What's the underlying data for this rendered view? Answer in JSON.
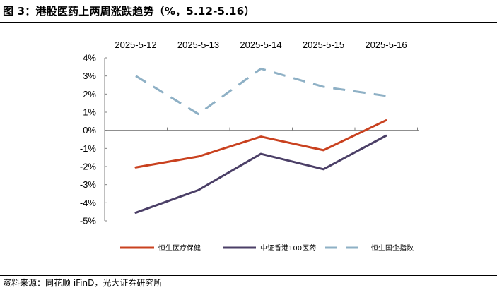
{
  "title": "图 3：港股医药上两周涨跌趋势（%，5.12-5.16）",
  "source": "资料来源：同花顺 iFinD，光大证券研究所",
  "chart_data": {
    "type": "line",
    "categories": [
      "2025-5-12",
      "2025-5-13",
      "2025-5-14",
      "2025-5-15",
      "2025-5-16"
    ],
    "yunit": "%",
    "ylim": [
      -5,
      4
    ],
    "yticks": [
      4,
      3,
      2,
      1,
      0,
      -1,
      -2,
      -3,
      -4,
      -5
    ],
    "grid": false,
    "legend_position": "bottom",
    "series": [
      {
        "name": "恒生医疗保健",
        "values": [
          -2.05,
          -1.45,
          -0.35,
          -1.1,
          0.55
        ],
        "color": "#C9411F",
        "dash": false
      },
      {
        "name": "中证香港100医药",
        "values": [
          -4.55,
          -3.3,
          -1.3,
          -2.15,
          -0.3
        ],
        "color": "#4B3F67",
        "dash": false
      },
      {
        "name": "恒生国企指数",
        "values": [
          3.0,
          0.9,
          3.4,
          2.4,
          1.9
        ],
        "color": "#8EB0C5",
        "dash": true
      }
    ]
  }
}
